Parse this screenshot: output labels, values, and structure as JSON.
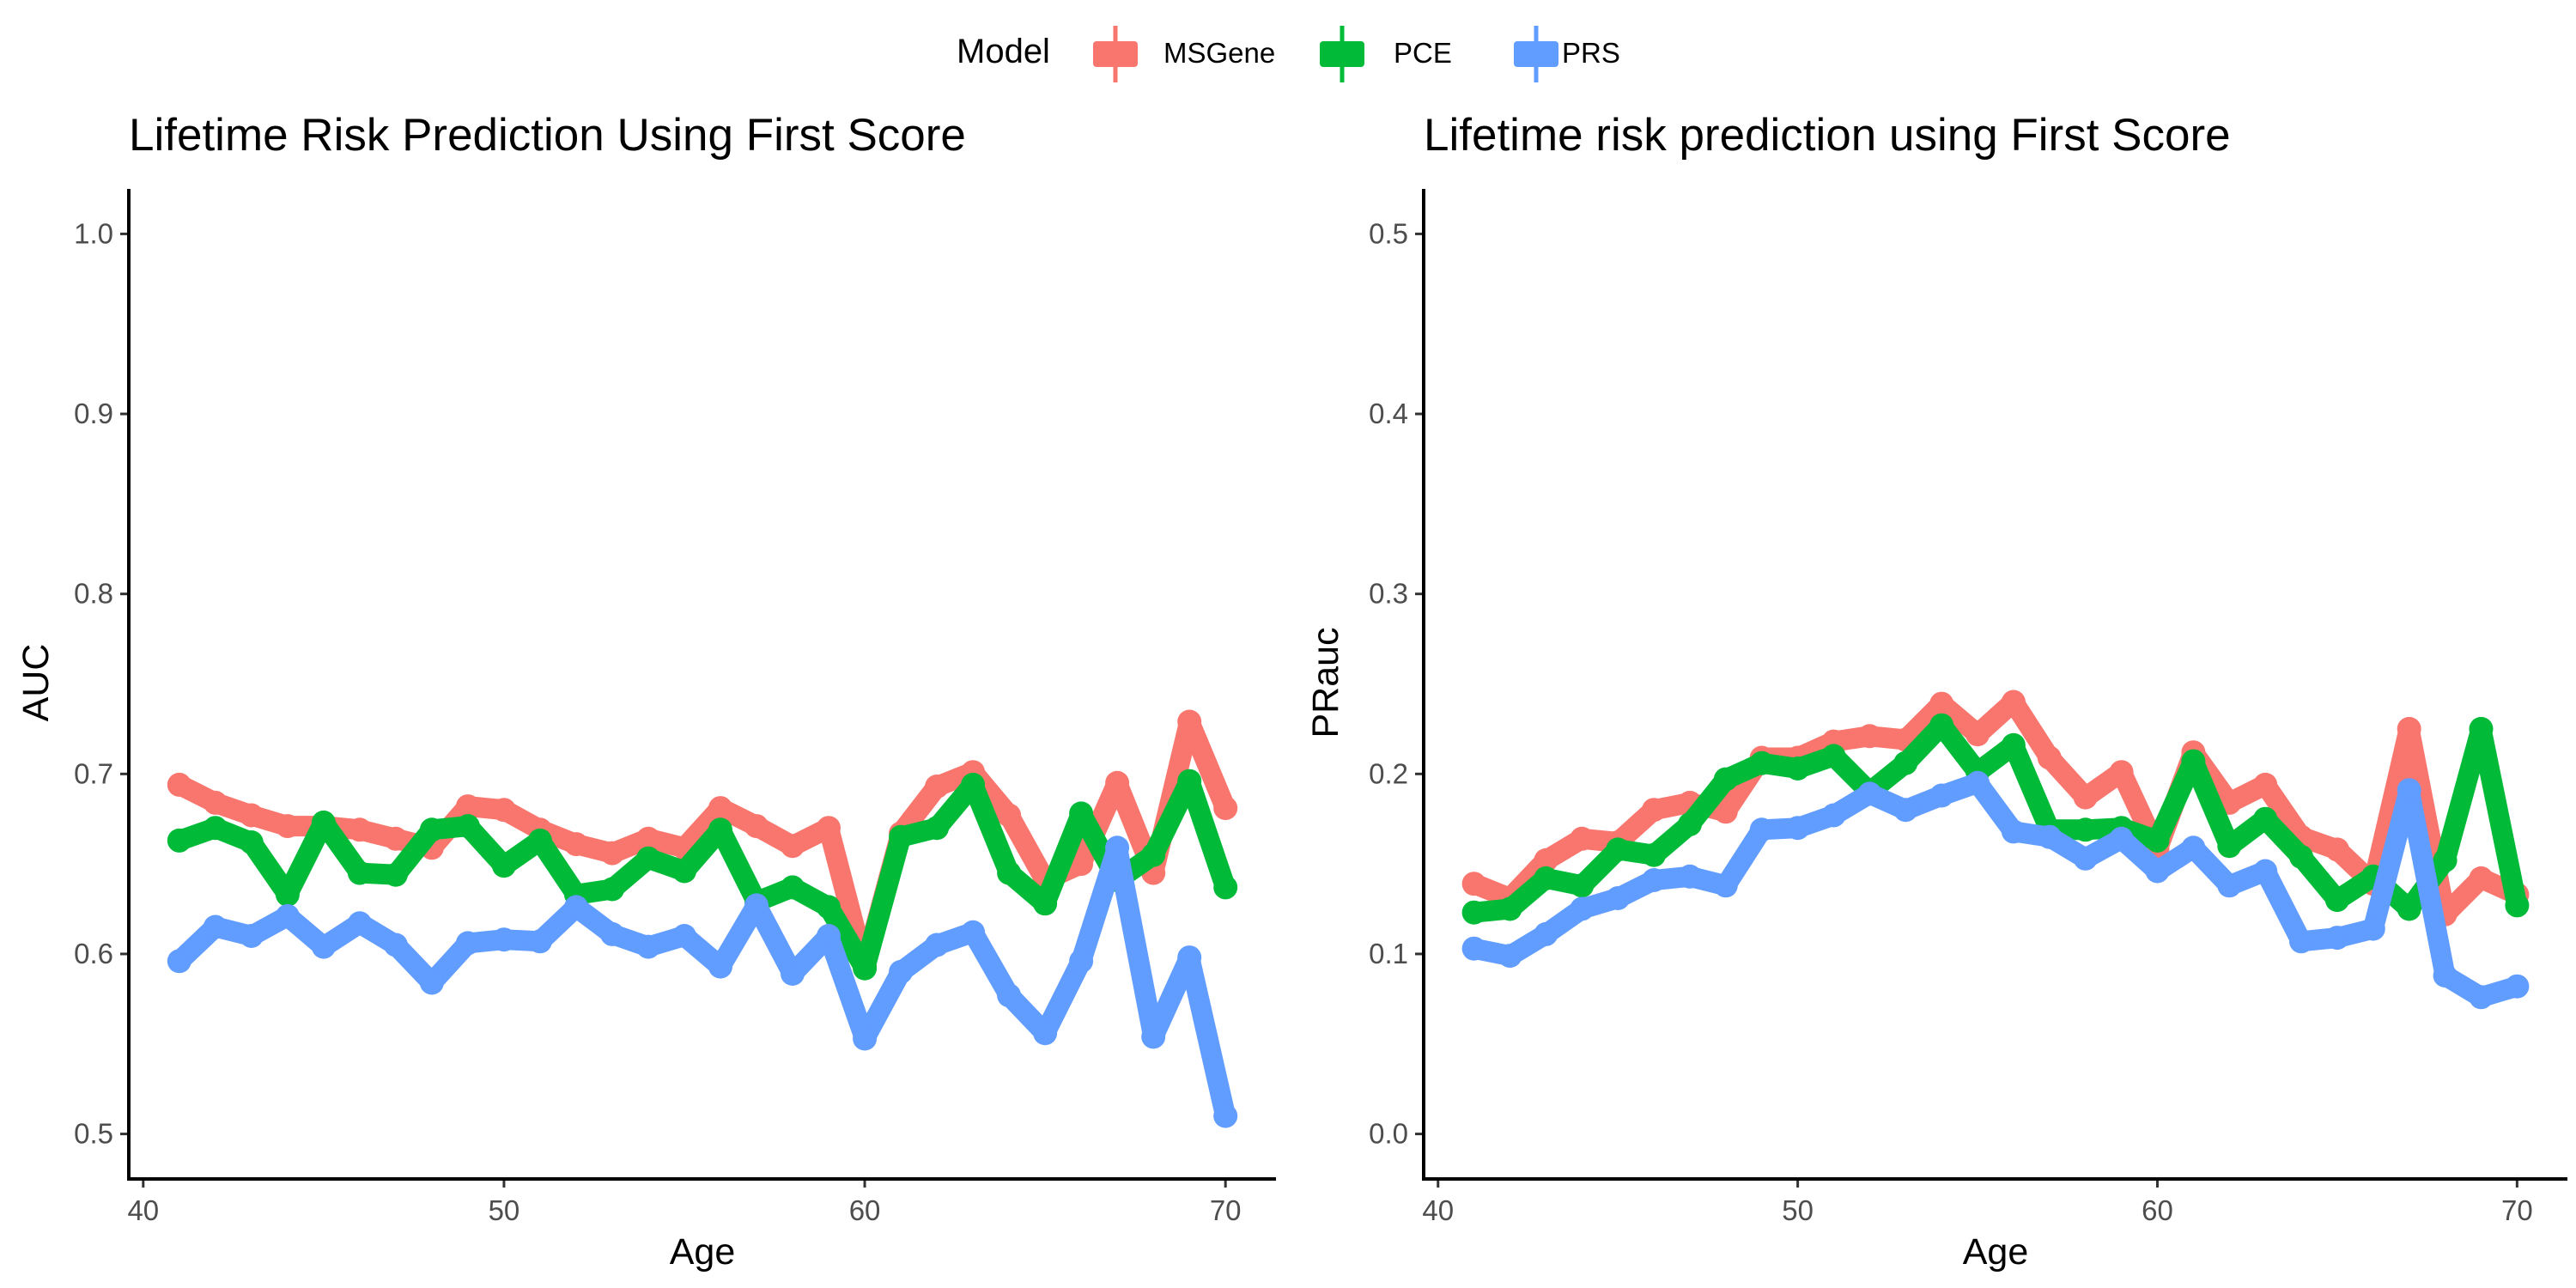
{
  "legend": {
    "title": "Model",
    "items": [
      {
        "name": "MSGene",
        "color": "#F8766D"
      },
      {
        "name": "PCE",
        "color": "#00BA38"
      },
      {
        "name": "PRS",
        "color": "#619CFF"
      }
    ]
  },
  "chart_data": [
    {
      "type": "line",
      "title": "Lifetime Risk Prediction Using First Score",
      "xlabel": "Age",
      "ylabel": "AUC",
      "xlim": [
        39.6,
        71.4
      ],
      "ylim": [
        0.475,
        1.025
      ],
      "x_ticks": [
        40,
        50,
        60,
        70
      ],
      "y_ticks": [
        0.5,
        0.6,
        0.7,
        0.8,
        0.9,
        1.0
      ],
      "y_tick_labels": [
        "0.5",
        "0.6",
        "0.7",
        "0.8",
        "0.9",
        "1.0"
      ],
      "grid": false,
      "x": [
        41,
        42,
        43,
        44,
        45,
        46,
        47,
        48,
        49,
        50,
        51,
        52,
        53,
        54,
        55,
        56,
        57,
        58,
        59,
        60,
        61,
        62,
        63,
        64,
        65,
        66,
        67,
        68,
        69,
        70
      ],
      "series": [
        {
          "name": "MSGene",
          "color": "#F8766D",
          "values": [
            0.694,
            0.684,
            0.677,
            0.671,
            0.671,
            0.669,
            0.664,
            0.659,
            0.682,
            0.68,
            0.669,
            0.661,
            0.656,
            0.664,
            0.659,
            0.681,
            0.671,
            0.66,
            0.67,
            0.593,
            0.667,
            0.693,
            0.701,
            0.677,
            0.641,
            0.65,
            0.695,
            0.645,
            0.729,
            0.681
          ]
        },
        {
          "name": "PCE",
          "color": "#00BA38",
          "values": [
            0.663,
            0.67,
            0.662,
            0.633,
            0.673,
            0.645,
            0.644,
            0.669,
            0.671,
            0.649,
            0.663,
            0.633,
            0.636,
            0.653,
            0.646,
            0.669,
            0.629,
            0.637,
            0.626,
            0.592,
            0.665,
            0.67,
            0.694,
            0.645,
            0.628,
            0.678,
            0.641,
            0.655,
            0.696,
            0.637
          ]
        },
        {
          "name": "PRS",
          "color": "#619CFF",
          "values": [
            0.596,
            0.615,
            0.61,
            0.621,
            0.604,
            0.617,
            0.605,
            0.584,
            0.606,
            0.608,
            0.607,
            0.626,
            0.611,
            0.604,
            0.61,
            0.593,
            0.627,
            0.589,
            0.61,
            0.553,
            0.59,
            0.605,
            0.612,
            0.577,
            0.556,
            0.596,
            0.659,
            0.554,
            0.598,
            0.51
          ]
        }
      ]
    },
    {
      "type": "line",
      "title": "Lifetime risk prediction using First Score",
      "xlabel": "Age",
      "ylabel": "PRauc",
      "xlim": [
        39.6,
        71.4
      ],
      "ylim": [
        -0.025,
        0.525
      ],
      "x_ticks": [
        40,
        50,
        60,
        70
      ],
      "y_ticks": [
        0.0,
        0.1,
        0.2,
        0.3,
        0.4,
        0.5
      ],
      "y_tick_labels": [
        "0.0",
        "0.1",
        "0.2",
        "0.3",
        "0.4",
        "0.5"
      ],
      "grid": false,
      "x": [
        41,
        42,
        43,
        44,
        45,
        46,
        47,
        48,
        49,
        50,
        51,
        52,
        53,
        54,
        55,
        56,
        57,
        58,
        59,
        60,
        61,
        62,
        63,
        64,
        65,
        66,
        67,
        68,
        69,
        70
      ],
      "series": [
        {
          "name": "MSGene",
          "color": "#F8766D",
          "values": [
            0.139,
            0.131,
            0.152,
            0.164,
            0.162,
            0.18,
            0.184,
            0.179,
            0.209,
            0.209,
            0.218,
            0.221,
            0.219,
            0.239,
            0.222,
            0.24,
            0.209,
            0.187,
            0.201,
            0.158,
            0.212,
            0.184,
            0.194,
            0.165,
            0.158,
            0.139,
            0.225,
            0.122,
            0.142,
            0.133
          ]
        },
        {
          "name": "PCE",
          "color": "#00BA38",
          "values": [
            0.123,
            0.125,
            0.142,
            0.138,
            0.158,
            0.155,
            0.172,
            0.197,
            0.206,
            0.203,
            0.21,
            0.19,
            0.206,
            0.227,
            0.201,
            0.216,
            0.169,
            0.169,
            0.17,
            0.163,
            0.207,
            0.16,
            0.175,
            0.154,
            0.13,
            0.143,
            0.125,
            0.152,
            0.225,
            0.127
          ]
        },
        {
          "name": "PRS",
          "color": "#619CFF",
          "values": [
            0.103,
            0.099,
            0.111,
            0.125,
            0.131,
            0.141,
            0.143,
            0.138,
            0.169,
            0.17,
            0.177,
            0.189,
            0.18,
            0.188,
            0.195,
            0.168,
            0.165,
            0.153,
            0.164,
            0.146,
            0.159,
            0.138,
            0.146,
            0.107,
            0.109,
            0.114,
            0.191,
            0.088,
            0.076,
            0.082
          ]
        }
      ]
    }
  ]
}
